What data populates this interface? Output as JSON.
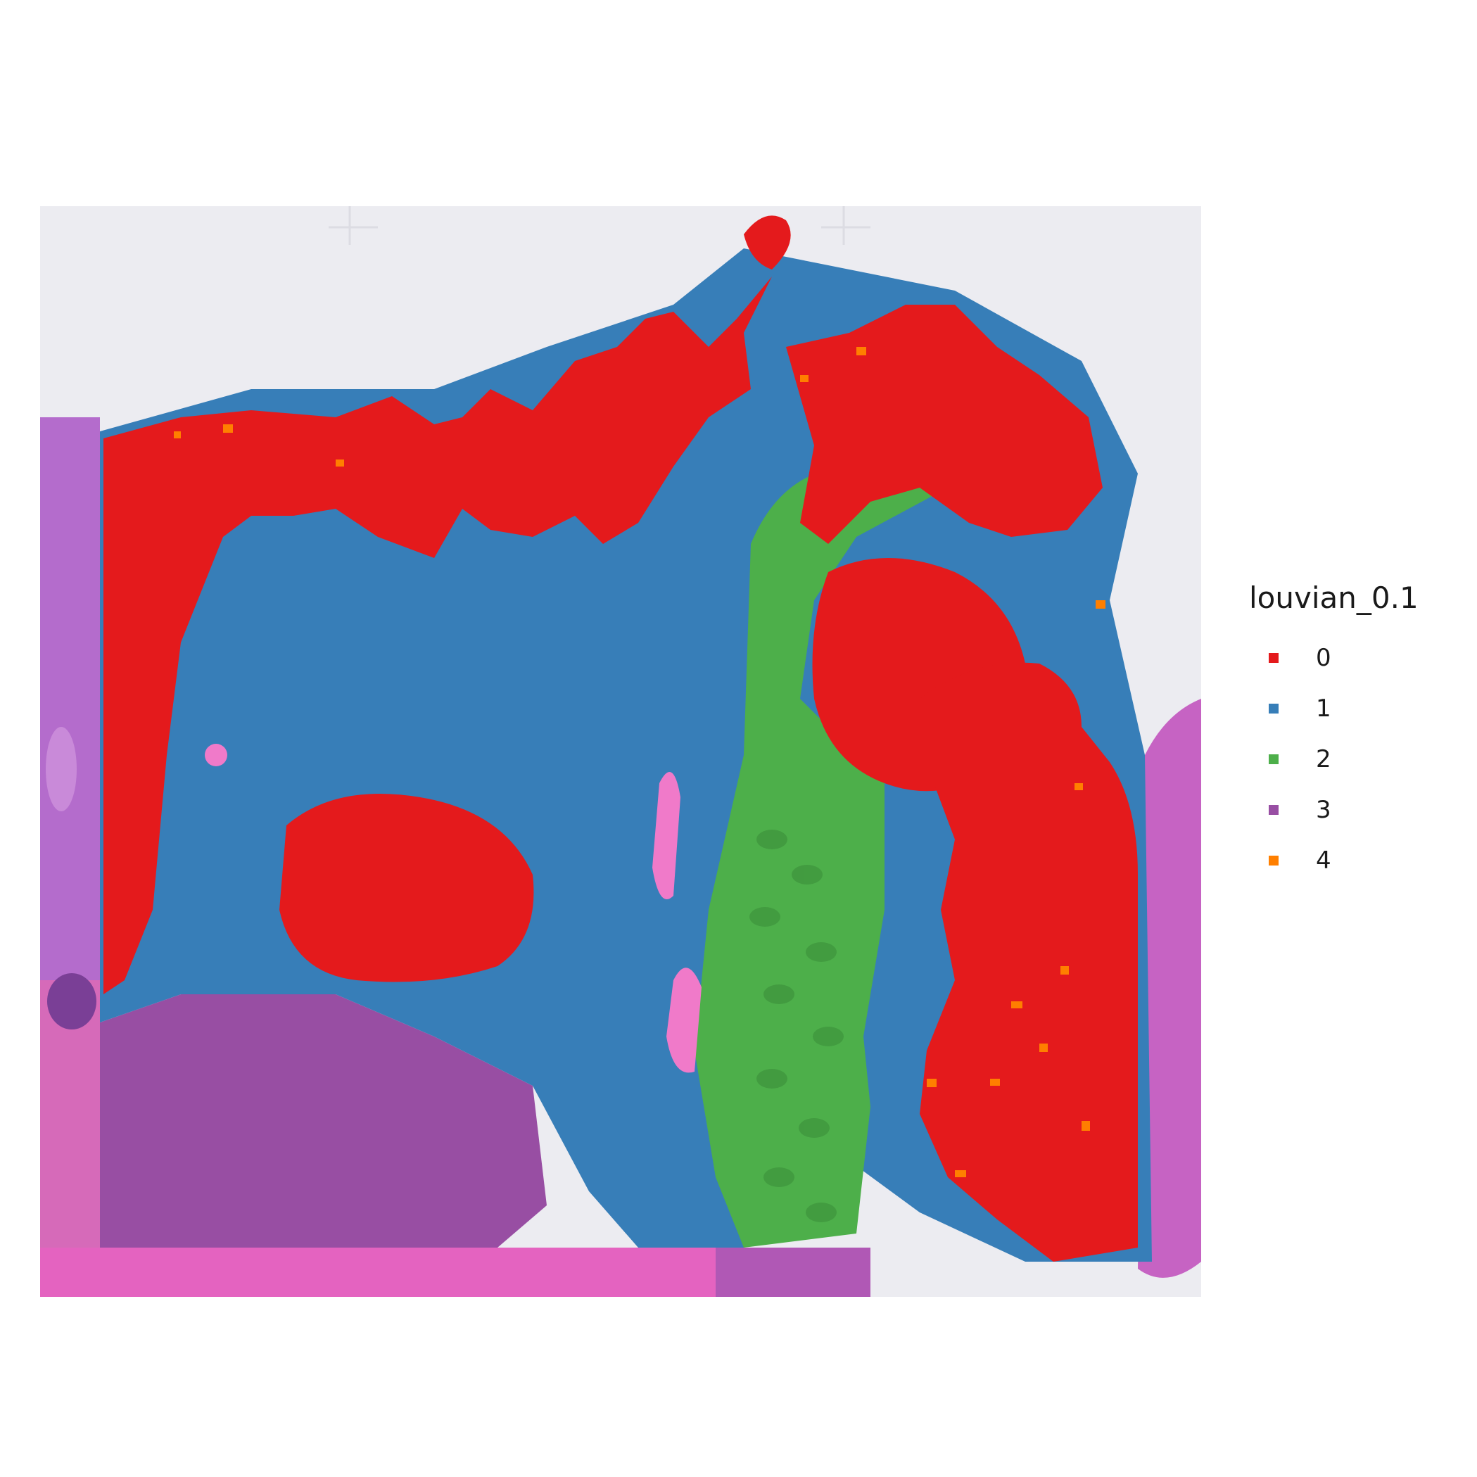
{
  "legend": {
    "title": "louvian_0.1",
    "items": [
      {
        "label": "0",
        "color": "#e41a1c"
      },
      {
        "label": "1",
        "color": "#377eb8"
      },
      {
        "label": "2",
        "color": "#4daf4a"
      },
      {
        "label": "3",
        "color": "#984ea3"
      },
      {
        "label": "4",
        "color": "#ff7f00"
      }
    ]
  },
  "colors": {
    "background": "#ececf1",
    "he_stain_pink": "#e463c0",
    "he_stain_purple": "#b46ccc",
    "cluster_0": "#e41a1c",
    "cluster_1": "#377eb8",
    "cluster_2": "#4daf4a",
    "cluster_3": "#984ea3",
    "cluster_4": "#ff7f00"
  }
}
